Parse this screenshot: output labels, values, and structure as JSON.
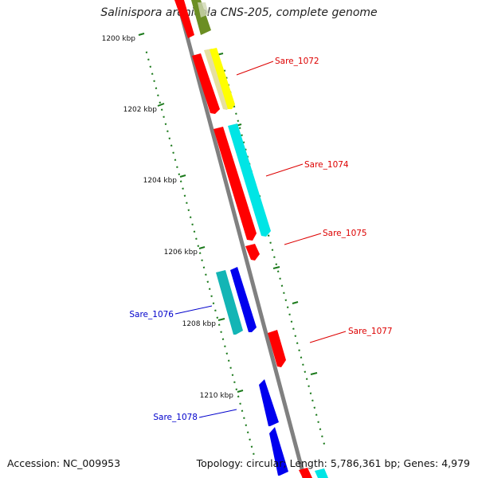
{
  "title": "Salinispora arenicola CNS-205, complete genome",
  "accession": "Accession: NC_009953",
  "topology": "Topology: circular; Length: 5,786,361 bp; Genes: 4,979",
  "colors": {
    "backbone": "#808080",
    "tick": "#1c7a1c",
    "gene_red": "#ff0000",
    "gene_cyan": "#00e5e5",
    "gene_yellow": "#ffff00",
    "gene_blue": "#0000ee",
    "gene_teal": "#13b5b5",
    "gene_olive": "#6b8e23",
    "label_red": "#dd0000",
    "label_blue": "#0000cc"
  },
  "ticks": [
    {
      "label": "1200 kbp"
    },
    {
      "label": "1202 kbp"
    },
    {
      "label": "1204 kbp"
    },
    {
      "label": "1206 kbp"
    },
    {
      "label": "1208 kbp"
    },
    {
      "label": "1210 kbp"
    }
  ],
  "gene_labels": [
    {
      "name": "Sare_1072",
      "color": "red"
    },
    {
      "name": "Sare_1074",
      "color": "red"
    },
    {
      "name": "Sare_1075",
      "color": "red"
    },
    {
      "name": "Sare_1076",
      "color": "blue"
    },
    {
      "name": "Sare_1077",
      "color": "red"
    },
    {
      "name": "Sare_1078",
      "color": "blue"
    }
  ]
}
